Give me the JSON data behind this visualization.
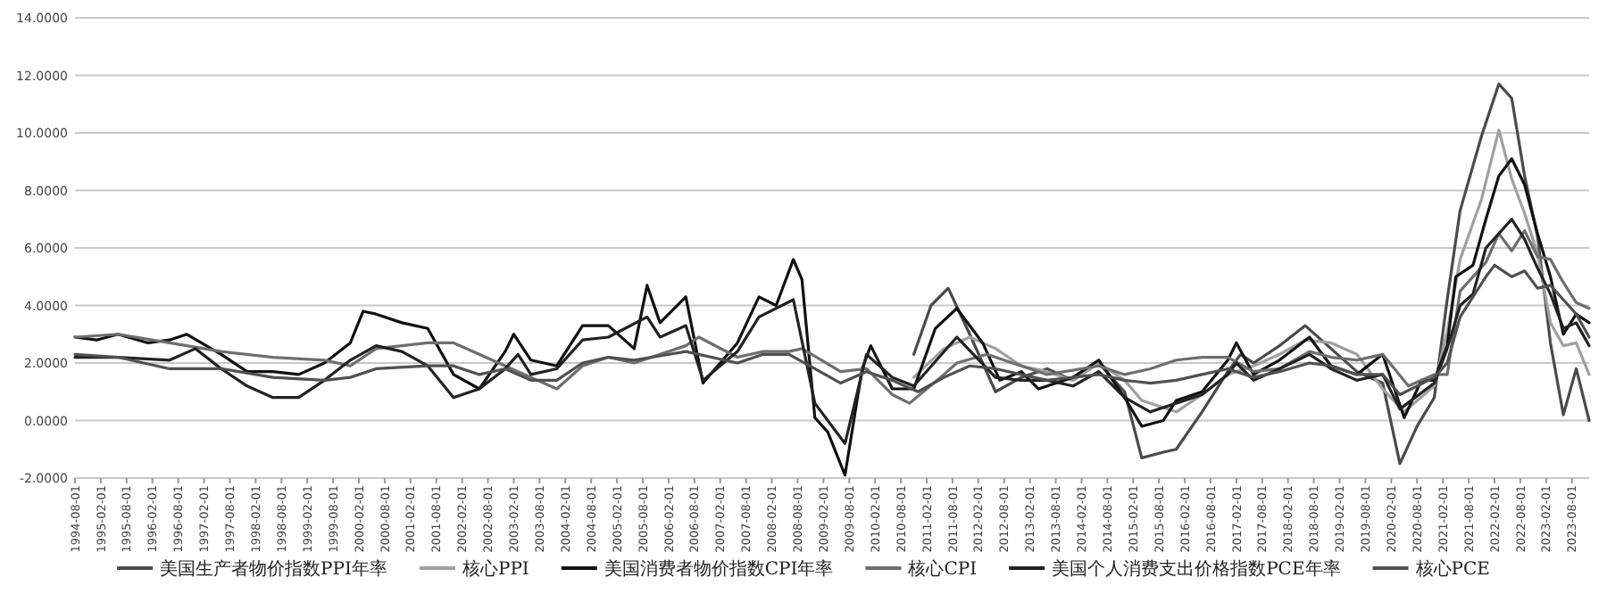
{
  "chart_data": {
    "type": "line",
    "xlim": [
      "1994-08",
      "2023-12"
    ],
    "ylim": [
      -2,
      14
    ],
    "yticks": [
      {
        "value": -2,
        "label": "-2.0000"
      },
      {
        "value": 0,
        "label": "0.0000"
      },
      {
        "value": 2,
        "label": "2.0000"
      },
      {
        "value": 4,
        "label": "4.0000"
      },
      {
        "value": 6,
        "label": "6.0000"
      },
      {
        "value": 8,
        "label": "8.0000"
      },
      {
        "value": 10,
        "label": "10.0000"
      },
      {
        "value": 12,
        "label": "12.0000"
      },
      {
        "value": 14,
        "label": "14.0000"
      }
    ],
    "xticks": [
      {
        "value": "1994-08",
        "label": "1994-08-01"
      },
      {
        "value": "1995-02",
        "label": "1995-02-01"
      },
      {
        "value": "1995-08",
        "label": "1995-08-01"
      },
      {
        "value": "1996-02",
        "label": "1996-02-01"
      },
      {
        "value": "1996-08",
        "label": "1996-08-01"
      },
      {
        "value": "1997-02",
        "label": "1997-02-01"
      },
      {
        "value": "1997-08",
        "label": "1997-08-01"
      },
      {
        "value": "1998-02",
        "label": "1998-02-01"
      },
      {
        "value": "1998-08",
        "label": "1998-08-01"
      },
      {
        "value": "1999-02",
        "label": "1999-02-01"
      },
      {
        "value": "1999-08",
        "label": "1999-08-01"
      },
      {
        "value": "2000-02",
        "label": "2000-02-01"
      },
      {
        "value": "2000-08",
        "label": "2000-08-01"
      },
      {
        "value": "2001-02",
        "label": "2001-02-01"
      },
      {
        "value": "2001-08",
        "label": "2001-08-01"
      },
      {
        "value": "2002-02",
        "label": "2002-02-01"
      },
      {
        "value": "2002-08",
        "label": "2002-08-01"
      },
      {
        "value": "2003-02",
        "label": "2003-02-01"
      },
      {
        "value": "2003-08",
        "label": "2003-08-01"
      },
      {
        "value": "2004-02",
        "label": "2004-02-01"
      },
      {
        "value": "2004-08",
        "label": "2004-08-01"
      },
      {
        "value": "2005-02",
        "label": "2005-02-01"
      },
      {
        "value": "2005-08",
        "label": "2005-08-01"
      },
      {
        "value": "2006-02",
        "label": "2006-02-01"
      },
      {
        "value": "2006-08",
        "label": "2006-08-01"
      },
      {
        "value": "2007-02",
        "label": "2007-02-01"
      },
      {
        "value": "2007-08",
        "label": "2007-08-01"
      },
      {
        "value": "2008-02",
        "label": "2008-02-01"
      },
      {
        "value": "2008-08",
        "label": "2008-08-01"
      },
      {
        "value": "2009-02",
        "label": "2009-02-01"
      },
      {
        "value": "2009-08",
        "label": "2009-08-01"
      },
      {
        "value": "2010-02",
        "label": "2010-02-01"
      },
      {
        "value": "2010-08",
        "label": "2010-08-01"
      },
      {
        "value": "2011-02",
        "label": "2011-02-01"
      },
      {
        "value": "2011-08",
        "label": "2011-08-01"
      },
      {
        "value": "2012-02",
        "label": "2012-02-01"
      },
      {
        "value": "2012-08",
        "label": "2012-08-01"
      },
      {
        "value": "2013-02",
        "label": "2013-02-01"
      },
      {
        "value": "2013-08",
        "label": "2013-08-01"
      },
      {
        "value": "2014-02",
        "label": "2014-02-01"
      },
      {
        "value": "2014-08",
        "label": "2014-08-01"
      },
      {
        "value": "2015-02",
        "label": "2015-02-01"
      },
      {
        "value": "2015-08",
        "label": "2015-08-01"
      },
      {
        "value": "2016-02",
        "label": "2016-02-01"
      },
      {
        "value": "2016-08",
        "label": "2016-08-01"
      },
      {
        "value": "2017-02",
        "label": "2017-02-01"
      },
      {
        "value": "2017-08",
        "label": "2017-08-01"
      },
      {
        "value": "2018-02",
        "label": "2018-02-01"
      },
      {
        "value": "2018-08",
        "label": "2018-08-01"
      },
      {
        "value": "2019-02",
        "label": "2019-02-01"
      },
      {
        "value": "2019-08",
        "label": "2019-08-01"
      },
      {
        "value": "2020-02",
        "label": "2020-02-01"
      },
      {
        "value": "2020-08",
        "label": "2020-08-01"
      },
      {
        "value": "2021-02",
        "label": "2021-02-01"
      },
      {
        "value": "2021-08",
        "label": "2021-08-01"
      },
      {
        "value": "2022-02",
        "label": "2022-02-01"
      },
      {
        "value": "2022-08",
        "label": "2022-08-01"
      },
      {
        "value": "2023-02",
        "label": "2023-02-01"
      },
      {
        "value": "2023-08",
        "label": "2023-08-01"
      }
    ],
    "grid": "y",
    "legend": "bottom",
    "marker": "none",
    "line_style": "solid",
    "series": [
      {
        "name": "美国生产者物价指数PPI年率",
        "color": "#4a4a4a",
        "x": [
          "2010-11",
          "2011-03",
          "2011-07",
          "2011-12",
          "2012-06",
          "2012-12",
          "2013-06",
          "2013-12",
          "2014-06",
          "2014-12",
          "2015-04",
          "2015-09",
          "2015-12",
          "2016-06",
          "2016-12",
          "2017-03",
          "2017-06",
          "2017-12",
          "2018-06",
          "2018-12",
          "2019-06",
          "2019-12",
          "2020-04",
          "2020-08",
          "2020-12",
          "2021-03",
          "2021-06",
          "2021-11",
          "2022-03",
          "2022-06",
          "2022-09",
          "2022-12",
          "2023-03",
          "2023-06",
          "2023-09",
          "2023-12"
        ],
        "values": [
          2.3,
          4.0,
          4.6,
          3.0,
          1.0,
          1.5,
          1.8,
          1.4,
          2.0,
          1.0,
          -1.3,
          -1.1,
          -1.0,
          0.3,
          1.7,
          2.3,
          2.0,
          2.6,
          3.3,
          2.5,
          1.7,
          1.3,
          -1.5,
          -0.2,
          0.8,
          4.2,
          7.3,
          9.9,
          11.7,
          11.2,
          8.5,
          6.4,
          2.7,
          0.2,
          1.8,
          0.0
        ]
      },
      {
        "name": "核心PPI",
        "color": "#a0a0a0",
        "x": [
          "2010-11",
          "2011-06",
          "2011-12",
          "2012-06",
          "2012-12",
          "2013-06",
          "2013-12",
          "2014-06",
          "2014-12",
          "2015-04",
          "2015-12",
          "2016-06",
          "2016-12",
          "2017-06",
          "2017-12",
          "2018-06",
          "2018-12",
          "2019-06",
          "2019-12",
          "2020-05",
          "2020-12",
          "2021-03",
          "2021-06",
          "2021-11",
          "2022-03",
          "2022-06",
          "2022-09",
          "2022-12",
          "2023-03",
          "2023-06",
          "2023-09",
          "2023-12"
        ],
        "values": [
          1.5,
          2.5,
          2.9,
          2.5,
          1.9,
          1.7,
          1.4,
          2.0,
          1.4,
          0.7,
          0.3,
          0.9,
          1.6,
          1.9,
          2.3,
          2.8,
          2.7,
          2.3,
          1.1,
          0.3,
          1.2,
          3.1,
          5.6,
          7.7,
          10.1,
          8.4,
          7.2,
          5.8,
          3.4,
          2.6,
          2.7,
          1.6
        ]
      },
      {
        "name": "美国消费者物价指数CPI年率",
        "color": "#111111",
        "x": [
          "1994-08",
          "1995-01",
          "1995-06",
          "1996-01",
          "1996-06",
          "1996-10",
          "1997-06",
          "1997-12",
          "1998-06",
          "1998-12",
          "1999-06",
          "1999-12",
          "2000-03",
          "2000-06",
          "2000-12",
          "2001-06",
          "2001-12",
          "2002-06",
          "2002-12",
          "2003-02",
          "2003-06",
          "2003-12",
          "2004-06",
          "2004-12",
          "2005-06",
          "2005-09",
          "2005-12",
          "2006-06",
          "2006-10",
          "2007-06",
          "2007-11",
          "2008-03",
          "2008-07",
          "2008-09",
          "2008-12",
          "2009-03",
          "2009-07",
          "2009-11",
          "2010-01",
          "2010-06",
          "2010-11",
          "2011-04",
          "2011-09",
          "2012-03",
          "2012-07",
          "2012-12",
          "2013-04",
          "2013-12",
          "2014-06",
          "2014-12",
          "2015-04",
          "2015-09",
          "2015-12",
          "2016-06",
          "2016-12",
          "2017-02",
          "2017-06",
          "2017-12",
          "2018-07",
          "2018-12",
          "2019-06",
          "2019-12",
          "2020-05",
          "2020-09",
          "2020-12",
          "2021-03",
          "2021-05",
          "2021-09",
          "2021-12",
          "2022-03",
          "2022-06",
          "2022-09",
          "2022-12",
          "2023-03",
          "2023-06",
          "2023-09",
          "2023-12"
        ],
        "values": [
          2.9,
          2.8,
          3.0,
          2.7,
          2.8,
          3.0,
          2.3,
          1.7,
          1.7,
          1.6,
          2.0,
          2.7,
          3.8,
          3.7,
          3.4,
          3.2,
          1.6,
          1.1,
          2.4,
          3.0,
          2.1,
          1.9,
          3.3,
          3.3,
          2.5,
          4.7,
          3.4,
          4.3,
          1.3,
          2.7,
          4.3,
          4.0,
          5.6,
          4.9,
          0.1,
          -0.4,
          -1.9,
          1.8,
          2.6,
          1.1,
          1.1,
          3.2,
          3.9,
          2.7,
          1.4,
          1.7,
          1.1,
          1.5,
          2.1,
          0.8,
          -0.2,
          0.0,
          0.7,
          1.0,
          2.1,
          2.7,
          1.6,
          2.1,
          2.9,
          1.9,
          1.6,
          2.3,
          0.1,
          1.4,
          1.4,
          2.6,
          5.0,
          5.4,
          7.0,
          8.5,
          9.1,
          8.2,
          6.5,
          5.0,
          3.0,
          3.7,
          3.4
        ]
      },
      {
        "name": "核心CPI",
        "color": "#6e6e6e",
        "x": [
          "1994-08",
          "1995-06",
          "1996-06",
          "1997-06",
          "1998-06",
          "1999-06",
          "1999-12",
          "2000-06",
          "2001-06",
          "2001-12",
          "2002-06",
          "2002-12",
          "2003-06",
          "2003-12",
          "2004-06",
          "2004-12",
          "2005-06",
          "2006-06",
          "2006-09",
          "2007-06",
          "2007-12",
          "2008-06",
          "2008-09",
          "2009-06",
          "2009-12",
          "2010-06",
          "2010-10",
          "2011-06",
          "2011-09",
          "2012-04",
          "2012-12",
          "2013-06",
          "2014-06",
          "2014-12",
          "2015-06",
          "2015-12",
          "2016-06",
          "2016-12",
          "2017-06",
          "2017-12",
          "2018-07",
          "2018-12",
          "2019-06",
          "2019-12",
          "2020-06",
          "2020-12",
          "2021-03",
          "2021-06",
          "2021-12",
          "2022-03",
          "2022-06",
          "2022-09",
          "2022-12",
          "2023-03",
          "2023-06",
          "2023-09",
          "2023-12"
        ],
        "values": [
          2.9,
          3.0,
          2.7,
          2.4,
          2.2,
          2.1,
          1.9,
          2.5,
          2.7,
          2.7,
          2.3,
          1.9,
          1.5,
          1.1,
          1.9,
          2.2,
          2.0,
          2.6,
          2.9,
          2.2,
          2.4,
          2.4,
          2.5,
          1.7,
          1.8,
          0.9,
          0.6,
          1.6,
          2.0,
          2.3,
          1.9,
          1.6,
          1.9,
          1.6,
          1.8,
          2.1,
          2.2,
          2.2,
          1.7,
          1.8,
          2.4,
          2.2,
          2.1,
          2.3,
          1.2,
          1.6,
          1.6,
          4.5,
          5.5,
          6.5,
          5.9,
          6.6,
          5.7,
          5.6,
          4.8,
          4.1,
          3.9
        ]
      },
      {
        "name": "美国个人消费支出价格指数PCE年率",
        "color": "#222222",
        "x": [
          "1994-08",
          "1995-06",
          "1996-06",
          "1996-12",
          "1997-06",
          "1997-12",
          "1998-06",
          "1998-12",
          "1999-06",
          "1999-12",
          "2000-06",
          "2000-12",
          "2001-06",
          "2001-12",
          "2002-06",
          "2002-12",
          "2003-03",
          "2003-06",
          "2003-12",
          "2004-06",
          "2004-12",
          "2005-09",
          "2005-12",
          "2006-06",
          "2006-10",
          "2007-06",
          "2007-11",
          "2008-07",
          "2008-12",
          "2009-07",
          "2009-12",
          "2010-06",
          "2010-11",
          "2011-09",
          "2012-06",
          "2012-12",
          "2013-06",
          "2013-12",
          "2014-06",
          "2014-12",
          "2015-06",
          "2015-12",
          "2016-06",
          "2016-12",
          "2017-02",
          "2017-06",
          "2017-12",
          "2018-07",
          "2018-12",
          "2019-06",
          "2019-12",
          "2020-04",
          "2020-12",
          "2021-03",
          "2021-06",
          "2021-09",
          "2021-12",
          "2022-06",
          "2022-09",
          "2022-12",
          "2023-03",
          "2023-06",
          "2023-09",
          "2023-12"
        ],
        "values": [
          2.2,
          2.2,
          2.1,
          2.5,
          1.8,
          1.2,
          0.8,
          0.8,
          1.4,
          2.1,
          2.6,
          2.4,
          1.9,
          0.8,
          1.1,
          1.8,
          2.3,
          1.6,
          1.8,
          2.8,
          2.9,
          3.6,
          2.9,
          3.3,
          1.4,
          2.4,
          3.6,
          4.2,
          0.6,
          -0.8,
          2.3,
          1.5,
          1.2,
          2.9,
          1.5,
          1.4,
          1.4,
          1.2,
          1.7,
          0.8,
          0.3,
          0.6,
          0.9,
          1.6,
          2.0,
          1.4,
          1.8,
          2.3,
          1.8,
          1.4,
          1.6,
          0.4,
          1.3,
          2.5,
          4.0,
          4.4,
          6.0,
          7.0,
          6.3,
          5.3,
          4.4,
          3.2,
          3.4,
          2.6
        ]
      },
      {
        "name": "核心PCE",
        "color": "#505050",
        "x": [
          "1994-08",
          "1995-06",
          "1996-06",
          "1997-06",
          "1998-06",
          "1999-06",
          "1999-12",
          "2000-06",
          "2001-06",
          "2001-12",
          "2002-06",
          "2002-12",
          "2003-06",
          "2003-12",
          "2004-06",
          "2004-12",
          "2005-06",
          "2006-06",
          "2007-06",
          "2007-12",
          "2008-06",
          "2008-12",
          "2009-06",
          "2009-12",
          "2010-06",
          "2010-12",
          "2011-06",
          "2011-12",
          "2012-06",
          "2012-12",
          "2013-06",
          "2013-12",
          "2014-06",
          "2014-12",
          "2015-06",
          "2015-12",
          "2016-06",
          "2016-12",
          "2017-06",
          "2017-12",
          "2018-07",
          "2018-12",
          "2019-06",
          "2019-12",
          "2020-04",
          "2020-12",
          "2021-03",
          "2021-06",
          "2021-12",
          "2022-02",
          "2022-06",
          "2022-09",
          "2022-12",
          "2023-03",
          "2023-06",
          "2023-09",
          "2023-12"
        ],
        "values": [
          2.3,
          2.2,
          1.8,
          1.8,
          1.5,
          1.4,
          1.5,
          1.8,
          1.9,
          1.9,
          1.6,
          1.8,
          1.4,
          1.4,
          2.0,
          2.2,
          2.1,
          2.4,
          2.0,
          2.3,
          2.3,
          1.8,
          1.3,
          1.7,
          1.4,
          1.0,
          1.5,
          1.9,
          1.8,
          1.6,
          1.4,
          1.5,
          1.6,
          1.4,
          1.3,
          1.4,
          1.6,
          1.8,
          1.5,
          1.7,
          2.0,
          1.9,
          1.6,
          1.6,
          0.9,
          1.5,
          2.0,
          3.6,
          5.0,
          5.4,
          5.0,
          5.2,
          4.6,
          4.7,
          4.2,
          3.7,
          2.9
        ]
      }
    ]
  }
}
